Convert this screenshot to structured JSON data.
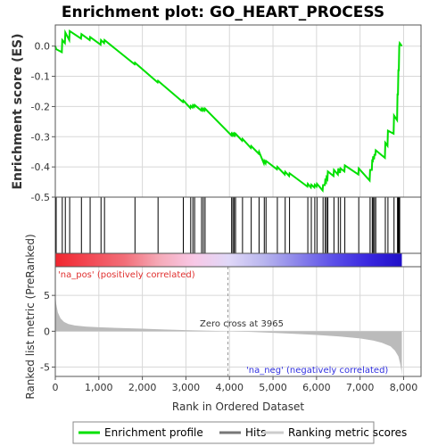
{
  "chart_data": {
    "title": "Enrichment plot: GO_HEART_PROCESS",
    "type": "line",
    "panels": {
      "enrichment": {
        "ylabel": "Enrichment score (ES)",
        "ylim": [
          -0.5,
          0.07
        ],
        "yticks": [
          "0.0",
          "-0.1",
          "-0.2",
          "-0.3",
          "-0.4",
          "-0.5"
        ],
        "ytick_values": [
          0.0,
          -0.1,
          -0.2,
          -0.3,
          -0.4,
          -0.5
        ],
        "grid": true
      },
      "ranked": {
        "ylabel": "Ranked list metric (PreRanked)",
        "ylim": [
          -6.3,
          9
        ],
        "yticks": [
          "5",
          "0",
          "-5"
        ],
        "ytick_values": [
          5,
          0,
          -5
        ],
        "grid": true
      }
    },
    "xlabel": "Rank in Ordered Dataset",
    "xlim": [
      0,
      8400
    ],
    "xticks": [
      "0",
      "1,000",
      "2,000",
      "3,000",
      "4,000",
      "5,000",
      "6,000",
      "7,000",
      "8,000"
    ],
    "xtick_values": [
      0,
      1000,
      2000,
      3000,
      4000,
      5000,
      6000,
      7000,
      8000
    ],
    "n_genes": 7960,
    "zero_cross": 3965,
    "zero_cross_label": "Zero cross at 3965",
    "pos_label": "'na_pos' (positively correlated)",
    "neg_label": "'na_neg' (negatively correlated)",
    "hits": [
      20,
      160,
      230,
      330,
      600,
      800,
      1050,
      1130,
      1830,
      2360,
      2940,
      3110,
      3160,
      3200,
      3360,
      3400,
      3440,
      4050,
      4080,
      4110,
      4140,
      4300,
      4500,
      4680,
      4800,
      4840,
      5100,
      5280,
      5380,
      5800,
      5880,
      5960,
      6010,
      6150,
      6200,
      6230,
      6260,
      6400,
      6500,
      6550,
      6650,
      6970,
      7230,
      7280,
      7300,
      7330,
      7360,
      7580,
      7640,
      7780,
      7860,
      7870,
      7880,
      7890,
      7900,
      7910
    ],
    "es_curve": {
      "x": [
        0,
        20,
        150,
        160,
        220,
        230,
        320,
        330,
        590,
        600,
        790,
        800,
        1040,
        1050,
        1120,
        1130,
        1820,
        1830,
        2350,
        2360,
        2930,
        2940,
        3100,
        3110,
        3150,
        3160,
        3190,
        3200,
        3350,
        3360,
        3390,
        3400,
        3430,
        3440,
        4040,
        4050,
        4070,
        4080,
        4100,
        4110,
        4130,
        4140,
        4290,
        4300,
        4490,
        4500,
        4670,
        4680,
        4790,
        4800,
        4830,
        4840,
        5090,
        5100,
        5270,
        5280,
        5370,
        5380,
        5790,
        5800,
        5870,
        5880,
        5950,
        5960,
        6000,
        6010,
        6140,
        6150,
        6190,
        6200,
        6220,
        6230,
        6250,
        6260,
        6390,
        6400,
        6490,
        6500,
        6540,
        6550,
        6640,
        6650,
        6960,
        6970,
        7220,
        7230,
        7270,
        7280,
        7290,
        7300,
        7320,
        7330,
        7350,
        7360,
        7570,
        7580,
        7630,
        7640,
        7770,
        7780,
        7850,
        7860,
        7870,
        7880,
        7890,
        7900,
        7910,
        7960
      ],
      "y": [
        0.0,
        -0.01,
        -0.02,
        0.02,
        0.01,
        0.045,
        0.02,
        0.05,
        0.025,
        0.04,
        0.02,
        0.03,
        0.005,
        0.02,
        0.01,
        0.02,
        -0.06,
        -0.055,
        -0.12,
        -0.115,
        -0.185,
        -0.18,
        -0.205,
        -0.198,
        -0.203,
        -0.196,
        -0.201,
        -0.195,
        -0.213,
        -0.207,
        -0.213,
        -0.207,
        -0.213,
        -0.207,
        -0.295,
        -0.29,
        -0.295,
        -0.29,
        -0.295,
        -0.29,
        -0.295,
        -0.29,
        -0.313,
        -0.307,
        -0.337,
        -0.331,
        -0.356,
        -0.35,
        -0.388,
        -0.38,
        -0.388,
        -0.38,
        -0.408,
        -0.4,
        -0.425,
        -0.416,
        -0.43,
        -0.421,
        -0.465,
        -0.456,
        -0.468,
        -0.459,
        -0.468,
        -0.459,
        -0.465,
        -0.456,
        -0.478,
        -0.46,
        -0.46,
        -0.445,
        -0.45,
        -0.435,
        -0.44,
        -0.415,
        -0.43,
        -0.41,
        -0.425,
        -0.405,
        -0.42,
        -0.405,
        -0.415,
        -0.395,
        -0.425,
        -0.405,
        -0.445,
        -0.41,
        -0.41,
        -0.375,
        -0.385,
        -0.365,
        -0.375,
        -0.36,
        -0.36,
        -0.345,
        -0.37,
        -0.32,
        -0.33,
        -0.28,
        -0.29,
        -0.23,
        -0.245,
        -0.16,
        -0.16,
        -0.08,
        -0.08,
        0.0,
        0.01,
        0.0
      ]
    },
    "ranked_metric": {
      "x": [
        0,
        20,
        60,
        120,
        200,
        300,
        450,
        700,
        1000,
        1500,
        2000,
        2500,
        3000,
        3500,
        3965,
        4500,
        5000,
        5500,
        6000,
        6500,
        7000,
        7300,
        7500,
        7700,
        7800,
        7880,
        7920,
        7950,
        7960
      ],
      "y": [
        5.2,
        3.8,
        2.6,
        1.8,
        1.3,
        1.0,
        0.8,
        0.65,
        0.55,
        0.45,
        0.35,
        0.25,
        0.15,
        0.07,
        0.0,
        -0.1,
        -0.22,
        -0.36,
        -0.52,
        -0.72,
        -1.0,
        -1.3,
        -1.6,
        -2.1,
        -2.7,
        -3.5,
        -4.5,
        -5.5,
        -6.2
      ]
    },
    "color_bar": {
      "colors": [
        "#f0262e",
        "#f24a55",
        "#f26e78",
        "#f5aab8",
        "#f8c8e6",
        "#e0d8f8",
        "#b9b6ee",
        "#8b84ea",
        "#5c50e8",
        "#3a28e0",
        "#2010c8"
      ]
    },
    "legend": [
      {
        "label": "Enrichment profile",
        "color": "#00e000"
      },
      {
        "label": "Hits",
        "color": "#777777"
      },
      {
        "label": "Ranking metric scores",
        "color": "#cccccc"
      }
    ],
    "colors": {
      "es_line": "#00e000",
      "hit": "#000000",
      "ranked_fill": "#bbbbbb",
      "grid": "#d8d8d8",
      "zero_line": "#999999"
    }
  }
}
